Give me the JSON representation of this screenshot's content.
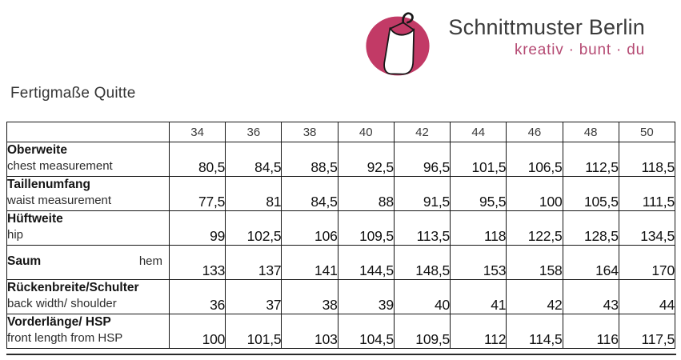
{
  "brand": {
    "name": "Schnittmuster Berlin",
    "tagline": "kreativ · bunt · du",
    "colors": {
      "logo_circle": "#c23a66",
      "tagline": "#b54a73",
      "brand_text": "#3b3b3b"
    }
  },
  "page_title": "Fertigmaße Quitte",
  "size_table": {
    "sizes": [
      "34",
      "36",
      "38",
      "40",
      "42",
      "44",
      "46",
      "48",
      "50"
    ],
    "rows": [
      {
        "label_de": "Oberweite",
        "label_en": "chest measurement",
        "inline": false,
        "values": [
          "80,5",
          "84,5",
          "88,5",
          "92,5",
          "96,5",
          "101,5",
          "106,5",
          "112,5",
          "118,5"
        ]
      },
      {
        "label_de": "Taillenumfang",
        "label_en": "waist measurement",
        "inline": false,
        "values": [
          "77,5",
          "81",
          "84,5",
          "88",
          "91,5",
          "95,5",
          "100",
          "105,5",
          "111,5"
        ]
      },
      {
        "label_de": "Hüftweite",
        "label_en": "hip",
        "inline": false,
        "values": [
          "99",
          "102,5",
          "106",
          "109,5",
          "113,5",
          "118",
          "122,5",
          "128,5",
          "134,5"
        ]
      },
      {
        "label_de": "Saum",
        "label_en": "hem",
        "inline": true,
        "values": [
          "133",
          "137",
          "141",
          "144,5",
          "148,5",
          "153",
          "158",
          "164",
          "170"
        ]
      },
      {
        "label_de": "Rückenbreite/Schulter",
        "label_en": "back width/ shoulder",
        "inline": false,
        "values": [
          "36",
          "37",
          "38",
          "39",
          "40",
          "41",
          "42",
          "43",
          "44"
        ]
      },
      {
        "label_de": "Vorderlänge/ HSP",
        "label_en": "front length from HSP",
        "inline": false,
        "values": [
          "100",
          "101,5",
          "103",
          "104,5",
          "109,5",
          "112",
          "114,5",
          "116",
          "117,5"
        ]
      }
    ]
  }
}
